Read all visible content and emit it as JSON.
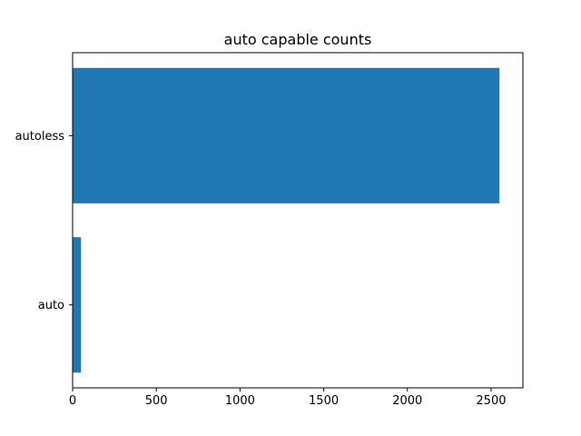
{
  "chart_data": {
    "type": "bar",
    "orientation": "horizontal",
    "title": "auto capable counts",
    "xlabel": "",
    "ylabel": "",
    "categories": [
      "auto",
      "autoless"
    ],
    "values": [
      50,
      2550
    ],
    "xlim": [
      0,
      2690
    ],
    "x_ticks": [
      0,
      500,
      1000,
      1500,
      2000,
      2500
    ],
    "grid": false,
    "bar_color": "#1f77b4"
  }
}
